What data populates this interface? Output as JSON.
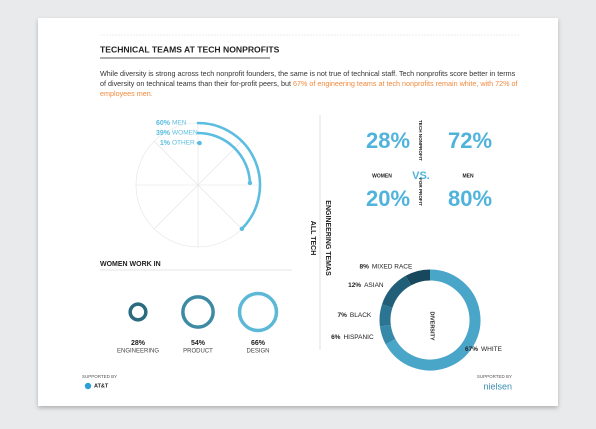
{
  "header": {
    "title": "TECHNICAL TEAMS AT TECH NONPROFITS",
    "intro": "While diversity is strong across tech nonprofit founders, the same is not true of technical staff. Tech nonprofits score better in terms of diversity on technical teams than their for-profit peers, but ",
    "intro_highlight": "67% of engineering teams at tech nonprofits remain white, with 72% of employees men."
  },
  "all_tech": {
    "label": "ALL TECH",
    "items": [
      {
        "value": 60,
        "label": "60%",
        "name": "MEN"
      },
      {
        "value": 39,
        "label": "39%",
        "name": "WOMEN"
      },
      {
        "value": 1,
        "label": "1%",
        "name": "OTHER"
      }
    ]
  },
  "women_work_in": {
    "title": "WOMEN WORK IN",
    "items": [
      {
        "value": 28,
        "label": "28%",
        "name": "ENGINEERING"
      },
      {
        "value": 54,
        "label": "54%",
        "name": "PRODUCT"
      },
      {
        "value": 66,
        "label": "66%",
        "name": "DESIGN"
      }
    ]
  },
  "engineering_label": "ENGINEERING TEMAS",
  "comparison": {
    "women_label": "WOMEN",
    "men_label": "MEN",
    "vs": "VS.",
    "rows": [
      {
        "name": "TECH NONPROFIT",
        "women": {
          "value": 28,
          "label": "28%"
        },
        "men": {
          "value": 72,
          "label": "72%"
        }
      },
      {
        "name": "FOR PROFIT",
        "women": {
          "value": 20,
          "label": "20%"
        },
        "men": {
          "value": 80,
          "label": "80%"
        }
      }
    ]
  },
  "diversity": {
    "title": "DIVERSITY",
    "segments": [
      {
        "value": 8,
        "label": "8%",
        "name": "MIXED RACE",
        "color": "#17485c"
      },
      {
        "value": 12,
        "label": "12%",
        "name": "ASIAN",
        "color": "#215f78"
      },
      {
        "value": 7,
        "label": "7%",
        "name": "BLACK",
        "color": "#2c7592"
      },
      {
        "value": 6,
        "label": "6%",
        "name": "HISPANIC",
        "color": "#3689a8"
      },
      {
        "value": 67,
        "label": "67%",
        "name": "WHITE",
        "color": "#4aa6c8"
      }
    ]
  },
  "footer": {
    "left_label": "SUPPORTED BY",
    "left_sponsor": "AT&T",
    "right_label": "SUPPORTED BY",
    "right_sponsor": "nielsen"
  }
}
